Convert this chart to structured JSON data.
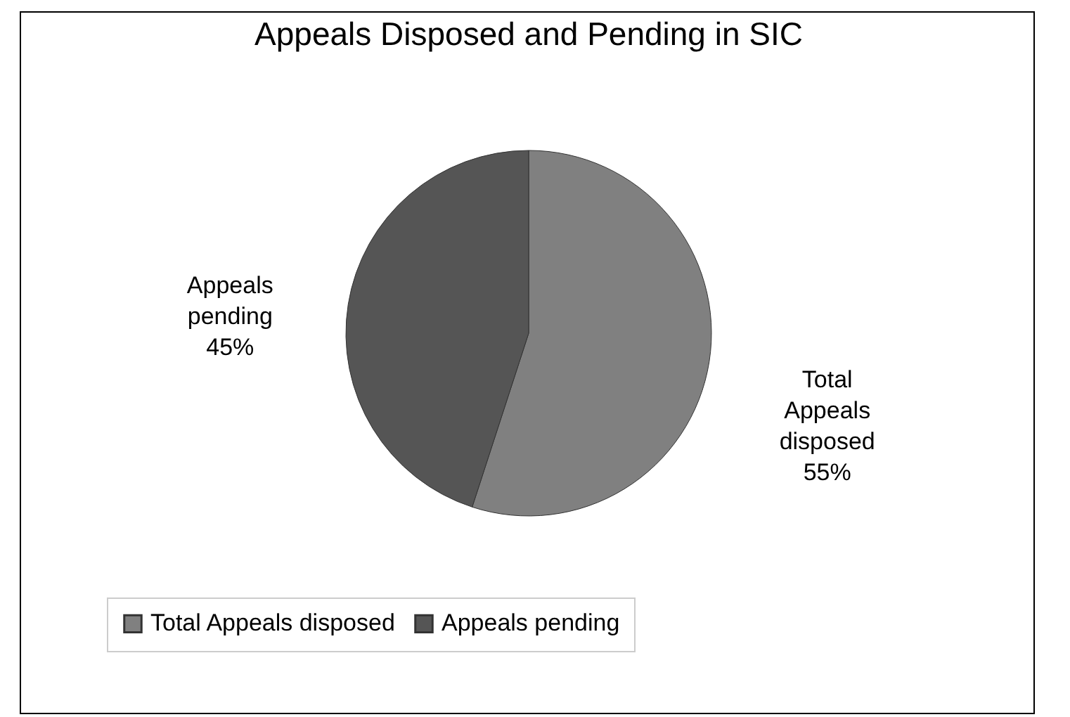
{
  "chart_data": {
    "type": "pie",
    "title": "Appeals Disposed and Pending in SIC",
    "categories": [
      "Total Appeals disposed",
      "Appeals pending"
    ],
    "values": [
      55,
      45
    ],
    "colors": [
      "#808080",
      "#555555"
    ],
    "value_labels": [
      "55%",
      "45%"
    ],
    "legend": "bottom"
  }
}
